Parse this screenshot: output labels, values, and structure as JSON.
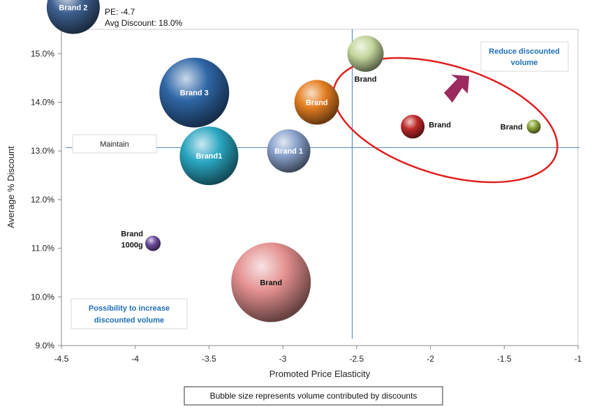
{
  "chart_data": {
    "type": "bubble",
    "xlabel": "Promoted Price Elasticity",
    "ylabel": "Average % Discount",
    "xlim": [
      -4.5,
      -1
    ],
    "ylim": [
      9.0,
      15.0
    ],
    "x_ticks": [
      "-4.5",
      "-4",
      "-3.5",
      "-3",
      "-2.5",
      "-2",
      "-1.5",
      "-1"
    ],
    "y_ticks": [
      "9.0%",
      "10.0%",
      "11.0%",
      "12.0%",
      "13.0%",
      "14.0%",
      "15.0%"
    ],
    "reference_lines": {
      "x": -2.53,
      "y": 13.07
    },
    "bubbles": [
      {
        "label": "Brand 2",
        "x": -4.42,
        "y": 15.95,
        "r": 38,
        "color": "#3d5f8f",
        "label_color": "#ffffff",
        "label_pos": "inside"
      },
      {
        "label": "Brand 3",
        "x": -3.6,
        "y": 14.2,
        "r": 50,
        "color": "#2f67a6",
        "label_color": "#ffffff",
        "label_pos": "inside"
      },
      {
        "label": "Brand1",
        "x": -3.5,
        "y": 12.9,
        "r": 42,
        "color": "#2aa6c1",
        "label_color": "#ffffff",
        "label_pos": "inside"
      },
      {
        "label": "Brand 1",
        "x": -2.96,
        "y": 13.0,
        "r": 31,
        "color": "#8aa2cc",
        "label_color": "#ffffff",
        "label_pos": "inside"
      },
      {
        "label": "Brand",
        "x": -2.77,
        "y": 14.0,
        "r": 32,
        "color": "#e57f22",
        "label_color": "#ffffff",
        "label_pos": "inside"
      },
      {
        "label": "Brand",
        "x": -3.08,
        "y": 10.3,
        "r": 57,
        "color": "#e3908f",
        "label_color": "#111111",
        "label_pos": "inside"
      },
      {
        "label": "Brand\n1000g",
        "x": -3.88,
        "y": 11.1,
        "r": 11,
        "color": "#6c4b9b",
        "label_color": "#111111",
        "label_pos": "left"
      },
      {
        "label": "Brand",
        "x": -2.44,
        "y": 15.0,
        "r": 26,
        "color": "#c3d69b",
        "label_color": "#111111",
        "label_pos": "below"
      },
      {
        "label": "Brand",
        "x": -2.12,
        "y": 13.5,
        "r": 17,
        "color": "#c0292b",
        "label_color": "#111111",
        "label_pos": "right"
      },
      {
        "label": "Brand",
        "x": -1.3,
        "y": 13.5,
        "r": 10,
        "color": "#8fa73a",
        "label_color": "#111111",
        "label_pos": "left"
      }
    ],
    "annotations": {
      "pe_text": "PE: -4.7",
      "avg_discount_text": "Avg Discount: 18.0%",
      "maintain": "Maintain",
      "reduce_line1": "Reduce discounted",
      "reduce_line2": "volume",
      "increase_line1": "Possibility to increase",
      "increase_line2": "discounted volume",
      "footnote": "Bubble size represents volume contributed by discounts"
    },
    "highlight_color": "#e02020",
    "arrow_color": "#9b2a5f",
    "grid": false
  }
}
